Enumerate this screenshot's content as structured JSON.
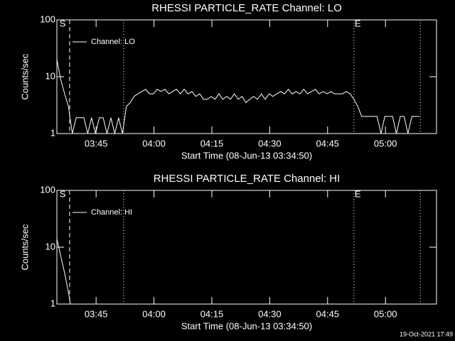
{
  "chart_data": [
    {
      "type": "line",
      "title": "RHESSI PARTICLE_RATE Channel: LO",
      "xlabel": "Start Time (08-Jun-13 03:34:50)",
      "ylabel": "Counts/sec",
      "xlim": [
        0,
        98.4
      ],
      "xticks": [
        {
          "value": 10.167,
          "label": "03:45"
        },
        {
          "value": 25.167,
          "label": "04:00"
        },
        {
          "value": 40.167,
          "label": "04:15"
        },
        {
          "value": 55.167,
          "label": "04:30"
        },
        {
          "value": 70.167,
          "label": "04:45"
        },
        {
          "value": 85.167,
          "label": "05:00"
        }
      ],
      "ylim": [
        1,
        100
      ],
      "yticks": [
        1,
        10,
        100
      ],
      "log_y": true,
      "legend": "upper left",
      "vlines": [
        {
          "value": 3.3,
          "style": "dashed"
        },
        {
          "value": 17.3,
          "style": "dotted"
        },
        {
          "value": 77.0,
          "style": "dotted"
        },
        {
          "value": 94.2,
          "style": "dotted"
        }
      ],
      "annotations": [
        {
          "text": "S",
          "x": 0.5
        },
        {
          "text": "E",
          "x": 77.0
        }
      ],
      "series": [
        {
          "name": "Channel: LO",
          "color": "#ffffff",
          "x": [
            0,
            1,
            2,
            3,
            4,
            5,
            6,
            7,
            8,
            9,
            10,
            11,
            12,
            13,
            14,
            15,
            16,
            17,
            18,
            19,
            20,
            21,
            22,
            23,
            24,
            25,
            26,
            27,
            28,
            29,
            30,
            31,
            32,
            33,
            34,
            35,
            36,
            37,
            38,
            39,
            40,
            41,
            42,
            43,
            44,
            45,
            46,
            47,
            48,
            49,
            50,
            51,
            52,
            53,
            54,
            55,
            56,
            57,
            58,
            59,
            60,
            61,
            62,
            63,
            64,
            65,
            66,
            67,
            68,
            69,
            70,
            71,
            72,
            73,
            74,
            75,
            76,
            77,
            78,
            79,
            80,
            81,
            82,
            83,
            84,
            85,
            86,
            87,
            88,
            89,
            90,
            91,
            92,
            93,
            94
          ],
          "values": [
            20,
            9,
            5,
            3,
            1,
            1.9,
            1.9,
            1.9,
            1,
            1.9,
            1,
            1.9,
            1.9,
            1,
            1.9,
            1,
            1.9,
            1,
            3,
            3.5,
            4.5,
            5,
            5.5,
            6,
            5,
            5,
            6,
            5.5,
            6,
            5,
            5.5,
            6,
            5,
            6,
            5,
            5.5,
            4.5,
            5,
            4,
            4,
            4.5,
            4,
            5,
            4,
            4.5,
            4,
            5,
            4,
            4.5,
            3.5,
            4,
            4.5,
            4,
            5,
            4,
            5,
            4.5,
            5,
            5.5,
            5,
            6,
            5,
            5.5,
            5,
            6,
            5,
            5.5,
            6,
            5,
            5.5,
            5,
            5.5,
            5,
            5,
            5,
            5.5,
            5,
            4,
            3,
            2,
            2,
            2,
            2,
            2,
            1,
            2,
            2,
            2,
            1,
            2,
            2,
            1,
            2,
            2,
            2
          ]
        }
      ]
    },
    {
      "type": "line",
      "title": "RHESSI PARTICLE_RATE Channel: HI",
      "xlabel": "Start Time (08-Jun-13 03:34:50)",
      "ylabel": "Counts/sec",
      "xlim": [
        0,
        98.4
      ],
      "xticks": [
        {
          "value": 10.167,
          "label": "03:45"
        },
        {
          "value": 25.167,
          "label": "04:00"
        },
        {
          "value": 40.167,
          "label": "04:15"
        },
        {
          "value": 55.167,
          "label": "04:30"
        },
        {
          "value": 70.167,
          "label": "04:45"
        },
        {
          "value": 85.167,
          "label": "05:00"
        }
      ],
      "ylim": [
        1,
        100
      ],
      "yticks": [
        1,
        10,
        100
      ],
      "log_y": true,
      "legend": "upper left",
      "vlines": [
        {
          "value": 3.3,
          "style": "dashed"
        },
        {
          "value": 17.3,
          "style": "dotted"
        },
        {
          "value": 77.0,
          "style": "dotted"
        },
        {
          "value": 94.2,
          "style": "dotted"
        }
      ],
      "annotations": [
        {
          "text": "S",
          "x": 0.5
        },
        {
          "text": "E",
          "x": 77.0
        }
      ],
      "series": [
        {
          "name": "Channel: HI",
          "color": "#ffffff",
          "x": [
            0,
            1,
            2,
            3,
            3.5
          ],
          "values": [
            14,
            7,
            3.5,
            1.6,
            1
          ]
        }
      ]
    }
  ],
  "footer": "19-Oct-2021 17:49"
}
